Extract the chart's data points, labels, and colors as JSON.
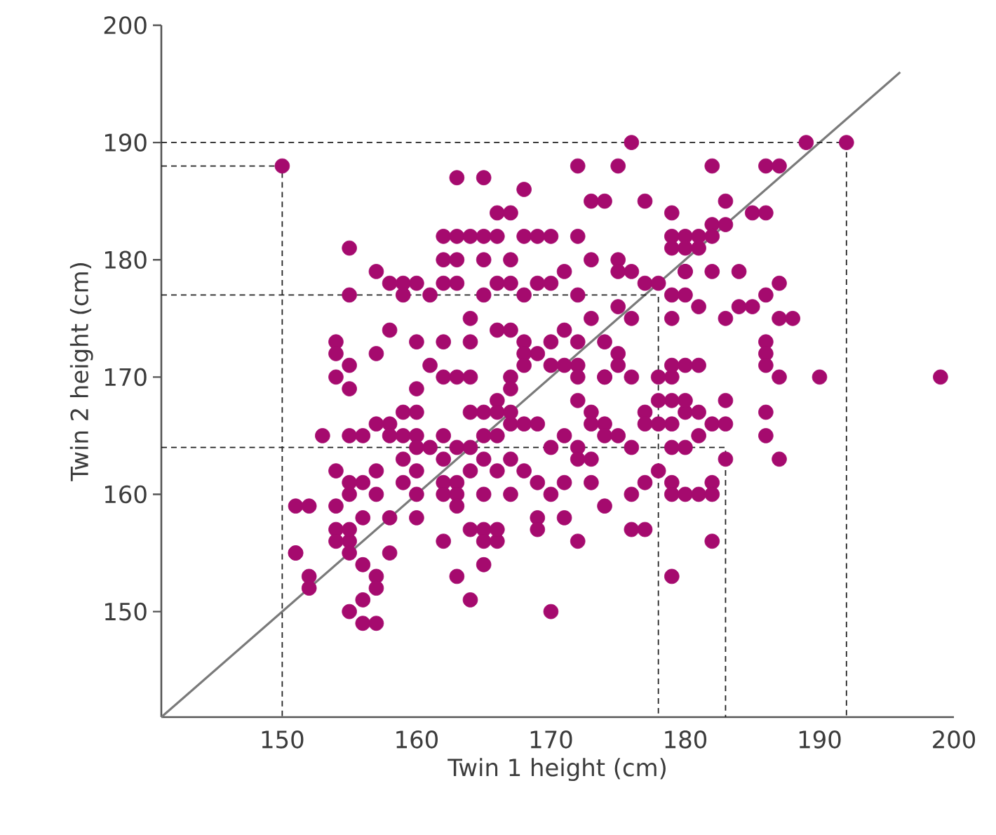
{
  "chart_data": {
    "type": "scatter",
    "xlabel": "Twin 1 height (cm)",
    "ylabel": "Twin 2 height (cm)",
    "xlim": [
      141,
      200
    ],
    "ylim": [
      141,
      200
    ],
    "xticks": [
      150,
      160,
      170,
      180,
      190,
      200
    ],
    "yticks": [
      150,
      160,
      170,
      180,
      190,
      200
    ],
    "grid": false,
    "series": [
      {
        "marker": "circle",
        "color": "#a50a6e",
        "x": [
          150,
          163,
          165,
          168,
          172,
          175,
          176,
          182,
          186,
          187,
          189,
          192,
          173,
          174,
          177,
          179,
          183,
          185,
          166,
          167,
          155,
          162,
          163,
          164,
          165,
          162,
          163,
          166,
          168,
          169,
          165,
          167,
          170,
          172,
          173,
          175,
          179,
          180,
          181,
          182,
          182,
          183,
          179,
          180,
          181,
          180,
          182,
          184,
          186,
          155,
          157,
          158,
          159,
          159,
          160,
          161,
          162,
          163,
          165,
          166,
          167,
          168,
          169,
          170,
          171,
          172,
          175,
          176,
          177,
          178,
          179,
          179,
          180,
          180,
          181,
          183,
          184,
          185,
          186,
          187,
          187,
          188,
          186,
          186,
          154,
          154,
          154,
          157,
          158,
          160,
          162,
          164,
          164,
          166,
          167,
          168,
          170,
          171,
          172,
          174,
          173,
          175,
          176,
          175,
          175,
          174,
          172,
          172,
          171,
          170,
          169,
          168,
          168,
          167,
          167,
          166,
          166,
          165,
          164,
          164,
          163,
          162,
          161,
          160,
          160,
          159,
          158,
          157,
          155,
          155,
          172,
          173,
          174,
          174,
          176,
          177,
          179,
          179,
          179,
          181,
          180,
          178,
          179,
          180,
          180,
          181,
          182,
          183,
          181,
          178,
          186,
          187,
          190,
          186,
          186,
          187,
          199,
          153,
          155,
          156,
          158,
          159,
          160,
          161,
          162,
          163,
          164,
          165,
          166,
          167,
          167,
          168,
          169,
          170,
          171,
          172,
          173,
          174,
          175,
          176,
          177,
          178,
          179,
          180,
          183,
          182,
          183,
          160,
          159,
          160,
          159,
          160,
          162,
          162,
          163,
          164,
          165,
          166,
          167,
          168,
          169,
          170,
          171,
          172,
          173,
          174,
          176,
          177,
          178,
          179,
          179,
          180,
          181,
          182,
          182,
          177,
          176,
          154,
          155,
          156,
          157,
          162,
          163,
          165,
          167,
          169,
          173,
          151,
          152,
          154,
          155,
          157,
          158,
          154,
          155,
          156,
          155,
          160,
          165,
          164,
          165,
          166,
          162,
          163,
          165,
          166,
          169,
          171,
          172,
          151,
          151,
          152,
          152,
          154,
          155,
          156,
          158,
          155,
          156,
          156,
          157,
          157,
          157,
          163,
          164,
          170,
          179
        ],
        "values": [
          188,
          187,
          187,
          186,
          188,
          188,
          190,
          188,
          188,
          188,
          190,
          190,
          185,
          185,
          185,
          184,
          185,
          184,
          184,
          184,
          181,
          182,
          182,
          182,
          182,
          180,
          180,
          182,
          182,
          182,
          180,
          180,
          182,
          182,
          180,
          180,
          182,
          182,
          182,
          183,
          182,
          183,
          181,
          181,
          181,
          179,
          179,
          179,
          184,
          177,
          179,
          178,
          177,
          178,
          178,
          177,
          178,
          178,
          177,
          178,
          178,
          177,
          178,
          178,
          179,
          177,
          179,
          179,
          178,
          178,
          177,
          175,
          177,
          179,
          176,
          175,
          176,
          176,
          177,
          178,
          175,
          175,
          173,
          172,
          173,
          172,
          170,
          172,
          174,
          173,
          173,
          175,
          173,
          174,
          174,
          173,
          173,
          174,
          173,
          173,
          175,
          176,
          175,
          172,
          171,
          170,
          171,
          170,
          171,
          171,
          172,
          172,
          171,
          170,
          169,
          168,
          167,
          167,
          167,
          170,
          170,
          170,
          171,
          169,
          167,
          167,
          166,
          166,
          169,
          171,
          168,
          167,
          166,
          170,
          170,
          167,
          170,
          171,
          168,
          171,
          171,
          168,
          166,
          167,
          168,
          165,
          166,
          168,
          167,
          170,
          171,
          170,
          170,
          167,
          165,
          163,
          170,
          165,
          165,
          165,
          165,
          165,
          165,
          164,
          165,
          164,
          164,
          165,
          165,
          166,
          167,
          166,
          166,
          164,
          165,
          164,
          166,
          165,
          165,
          164,
          166,
          166,
          164,
          164,
          163,
          161,
          166,
          164,
          163,
          162,
          161,
          160,
          163,
          161,
          161,
          162,
          163,
          162,
          163,
          162,
          161,
          160,
          161,
          163,
          163,
          159,
          160,
          161,
          162,
          161,
          160,
          160,
          160,
          160,
          156,
          157,
          157,
          162,
          160,
          161,
          160,
          160,
          160,
          160,
          160,
          158,
          161,
          159,
          159,
          159,
          161,
          162,
          158,
          157,
          156,
          158,
          157,
          158,
          157,
          157,
          156,
          156,
          156,
          159,
          154,
          157,
          157,
          158,
          156,
          155,
          155,
          153,
          152,
          156,
          155,
          154,
          155,
          150,
          151,
          149,
          149,
          153,
          152,
          153,
          151,
          150,
          153
        ]
      },
      {
        "type": "line",
        "marker": "none",
        "line_style": "solid",
        "color": "#7a7a7a",
        "x": [
          141,
          196
        ],
        "values": [
          141,
          196
        ]
      },
      {
        "type": "line",
        "marker": "none",
        "line_style": "dashed",
        "color": "#222222",
        "x": [
          141,
          192,
          192
        ],
        "values": [
          190,
          190,
          141
        ]
      },
      {
        "type": "line",
        "marker": "none",
        "line_style": "dashed",
        "color": "#222222",
        "x": [
          141,
          150,
          150
        ],
        "values": [
          188,
          188,
          141
        ]
      },
      {
        "type": "line",
        "marker": "none",
        "line_style": "dashed",
        "color": "#222222",
        "x": [
          141,
          178,
          178
        ],
        "values": [
          177,
          177,
          141
        ]
      },
      {
        "type": "line",
        "marker": "none",
        "line_style": "dashed",
        "color": "#222222",
        "x": [
          141,
          183,
          183
        ],
        "values": [
          164,
          164,
          141
        ]
      }
    ]
  }
}
